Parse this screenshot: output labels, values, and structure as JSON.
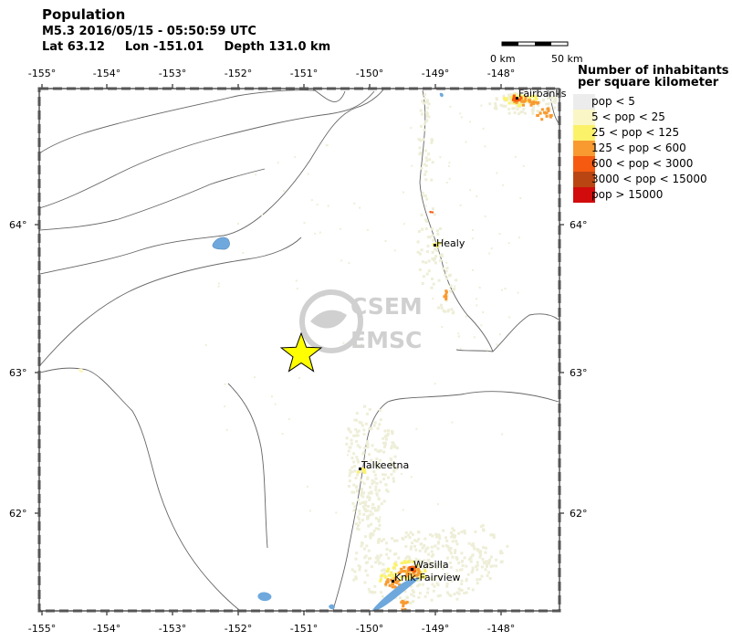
{
  "header": {
    "title": "Population",
    "event": "M5.3  2016/05/15 - 05:50:59 UTC",
    "lat": "Lat 63.12",
    "lon": "Lon -151.01",
    "depth": "Depth 131.0 km"
  },
  "scale": {
    "left_label": "0 km",
    "right_label": "50 km"
  },
  "axes": {
    "lon_ticks": [
      "-155°",
      "-154°",
      "-153°",
      "-152°",
      "-151°",
      "-150°",
      "-149°",
      "-148°"
    ],
    "lat_ticks": [
      "64°",
      "63°",
      "62°"
    ]
  },
  "legend": {
    "title_line1": "Number of inhabitants",
    "title_line2": "per square kilometer",
    "items": [
      {
        "label": "pop < 5",
        "color": "#ececec"
      },
      {
        "label": "5 < pop < 25",
        "color": "#fbf6c6"
      },
      {
        "label": "25 < pop < 125",
        "color": "#fbf26a"
      },
      {
        "label": "125 < pop < 600",
        "color": "#f89a30"
      },
      {
        "label": "600 < pop < 3000",
        "color": "#f55a10"
      },
      {
        "label": "3000 < pop < 15000",
        "color": "#b84512"
      },
      {
        "label": "pop > 15000",
        "color": "#d20c0c"
      }
    ]
  },
  "cities": {
    "fairbanks": "Fairbanks",
    "healy": "Healy",
    "talkeetna": "Talkeetna",
    "wasilla": "Wasilla",
    "knik": "Knik-Fairview"
  },
  "watermark": {
    "line1": "CSEM",
    "line2": "EMSC"
  },
  "epicenter": {
    "lat": 63.12,
    "lon": -151.01,
    "color": "#ffff00"
  },
  "colors": {
    "water": "#6fa8dc",
    "boundary": "#666666",
    "pop_light": "#eeeed8"
  }
}
